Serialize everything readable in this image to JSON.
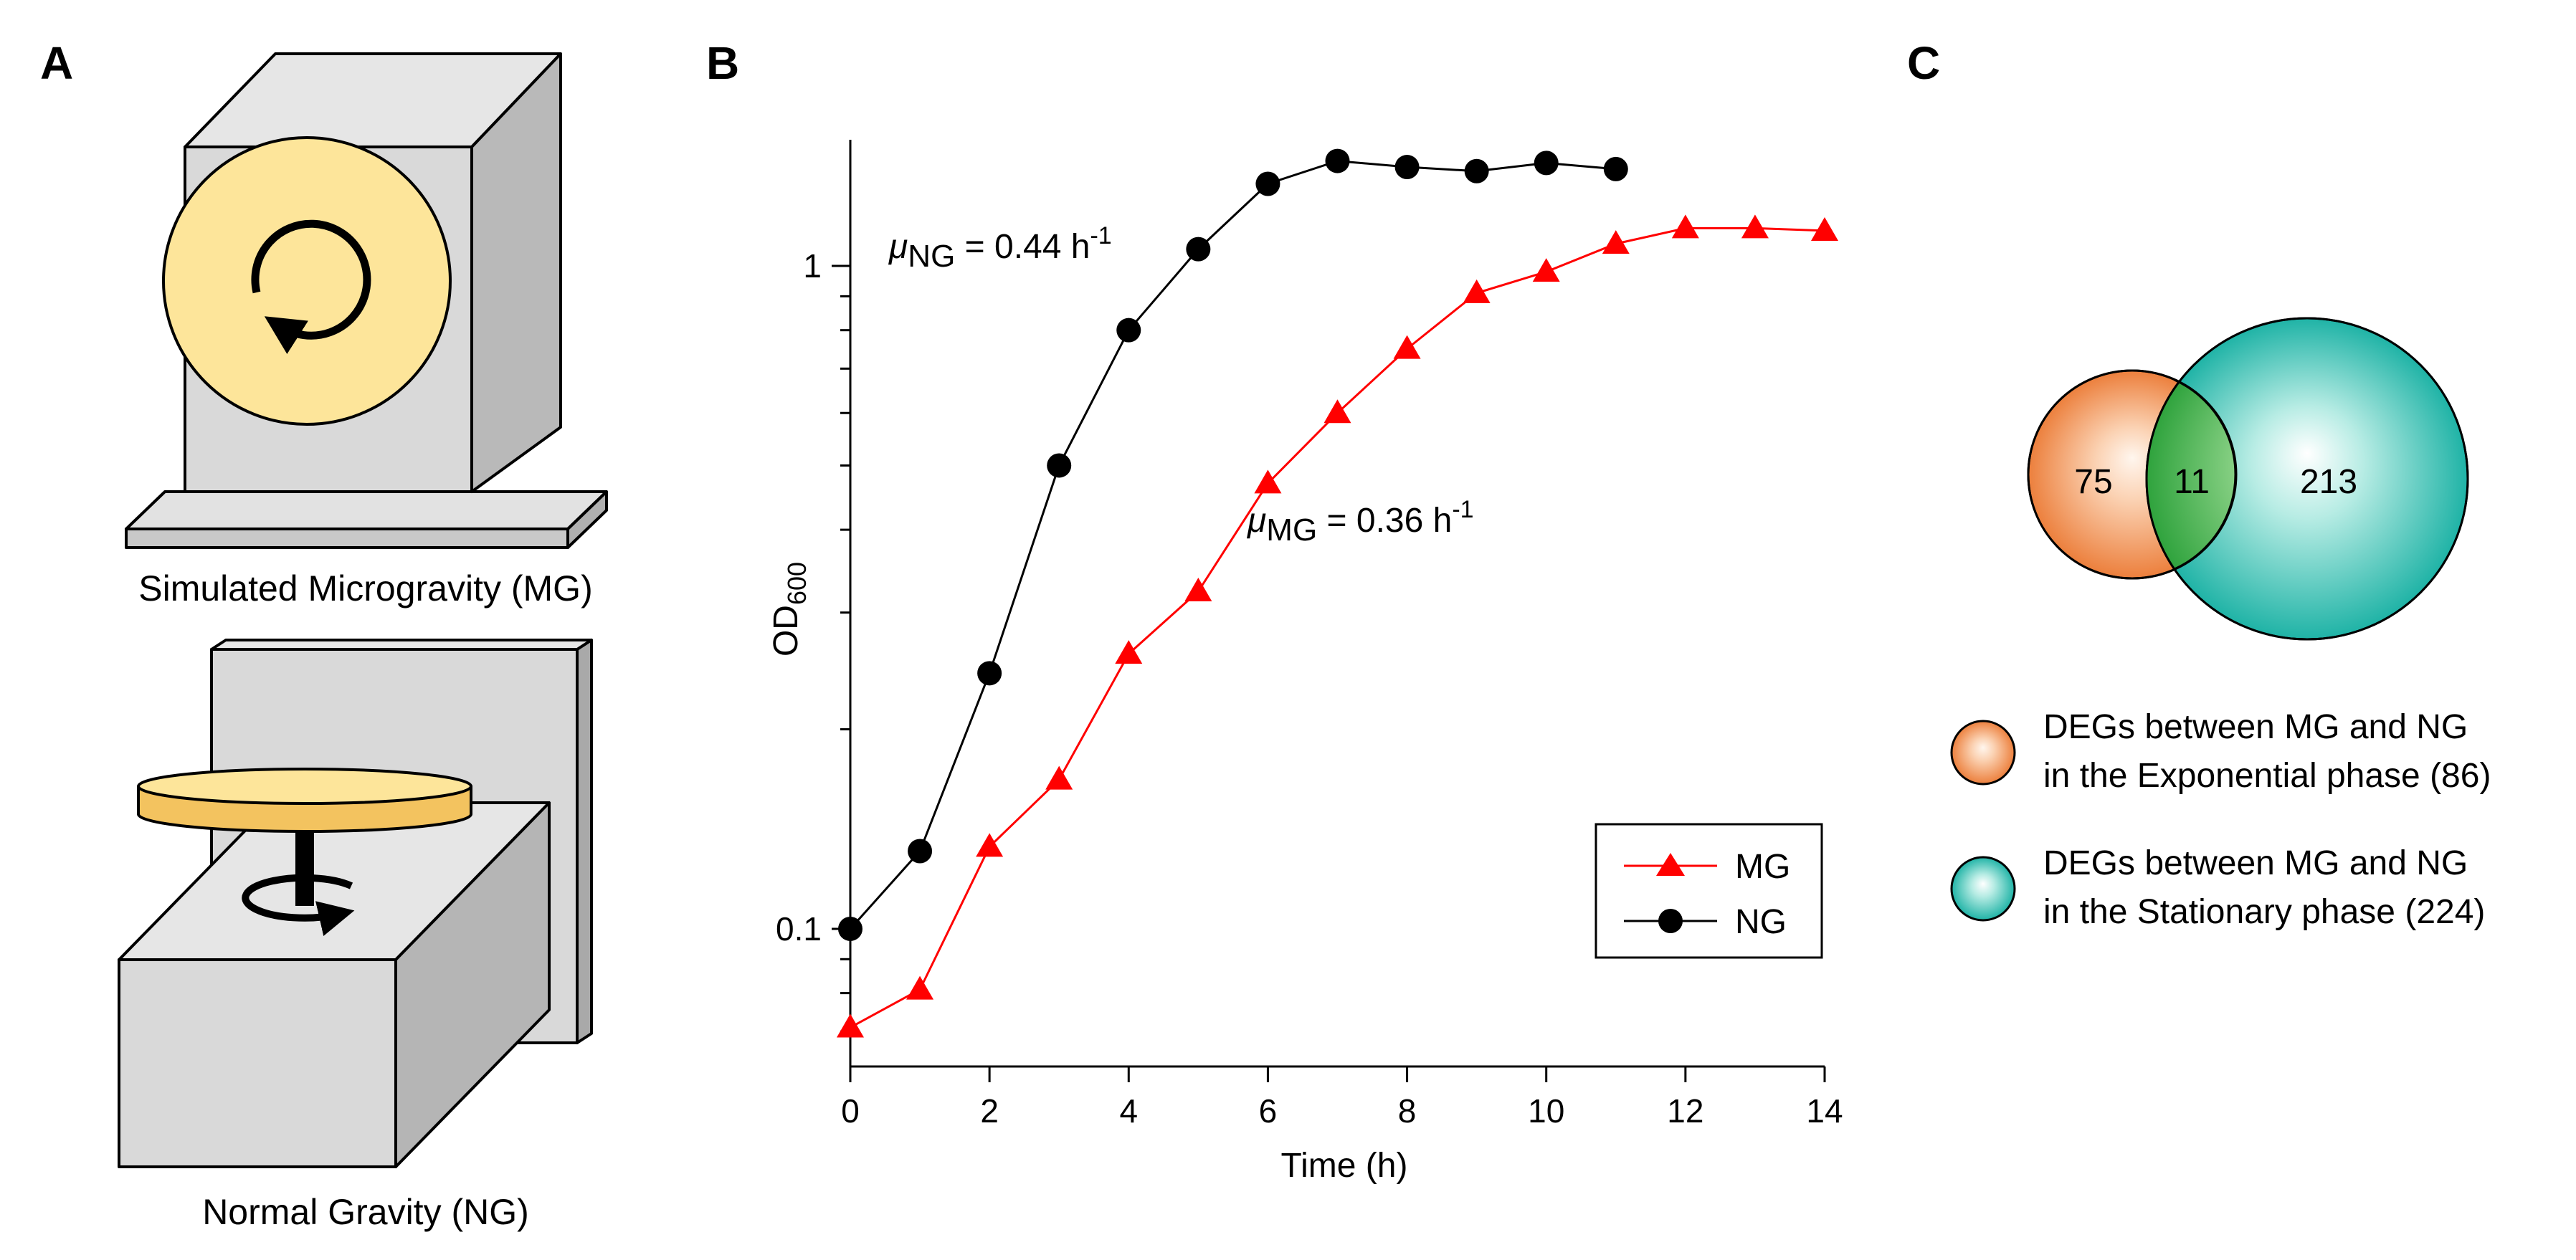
{
  "panels": {
    "a": "A",
    "b": "B",
    "c": "C"
  },
  "panel_a": {
    "mg_caption": "Simulated Microgravity (MG)",
    "ng_caption": "Normal Gravity (NG)"
  },
  "rates": {
    "ng": {
      "symbol": "μ",
      "sub": "NG",
      "eq": " = 0.44 h",
      "sup": "-1"
    },
    "mg": {
      "symbol": "μ",
      "sub": "MG",
      "eq": " = 0.36 h",
      "sup": "-1"
    }
  },
  "colors": {
    "mg": "#ff0000",
    "ng": "#000000",
    "exp_circle": "#f08a4b",
    "stat_circle": "#22b5a8",
    "overlap": "#3cb54a",
    "rotor": "#fde59a",
    "box": "#d9d9d9"
  },
  "chart_data": {
    "type": "line",
    "title": "",
    "xlabel": "Time (h)",
    "ylabel_main": "OD",
    "ylabel_sub": "600",
    "yscale": "log",
    "xlim": [
      0,
      14
    ],
    "ylim": [
      0.062,
      1.55
    ],
    "xticks": [
      0,
      2,
      4,
      6,
      8,
      10,
      12,
      14
    ],
    "xtick_labels": [
      "0",
      "2",
      "4",
      "6",
      "8",
      "10",
      "12",
      "14"
    ],
    "yticks_major": [
      0.1,
      1
    ],
    "ytick_labels": [
      "0.1",
      "1"
    ],
    "yticks_minor": [
      0.07,
      0.08,
      0.09,
      0.2,
      0.3,
      0.4,
      0.5,
      0.6,
      0.7,
      0.8,
      0.9
    ],
    "legend_position": "bottom-right",
    "series": [
      {
        "name": "MG",
        "marker": "triangle",
        "x": [
          0,
          1,
          2,
          3,
          4,
          5,
          6,
          7,
          8,
          9,
          10,
          11,
          12,
          13,
          14
        ],
        "values": [
          0.071,
          0.081,
          0.133,
          0.168,
          0.26,
          0.323,
          0.47,
          0.6,
          0.75,
          0.91,
          0.98,
          1.08,
          1.14,
          1.14,
          1.13
        ]
      },
      {
        "name": "NG",
        "marker": "circle",
        "x": [
          0,
          1,
          2,
          3,
          4,
          5,
          6,
          7,
          8,
          9,
          10,
          11
        ],
        "values": [
          0.1,
          0.131,
          0.243,
          0.5,
          0.8,
          1.06,
          1.33,
          1.44,
          1.41,
          1.39,
          1.43,
          1.4
        ]
      }
    ]
  },
  "venn": {
    "exp_only": "75",
    "overlap": "11",
    "stat_only": "213",
    "legend": [
      {
        "line1": "DEGs between MG and NG",
        "line2": "in the Exponential phase (86)"
      },
      {
        "line1": "DEGs between MG and NG",
        "line2": "in the Stationary phase (224)"
      }
    ]
  }
}
